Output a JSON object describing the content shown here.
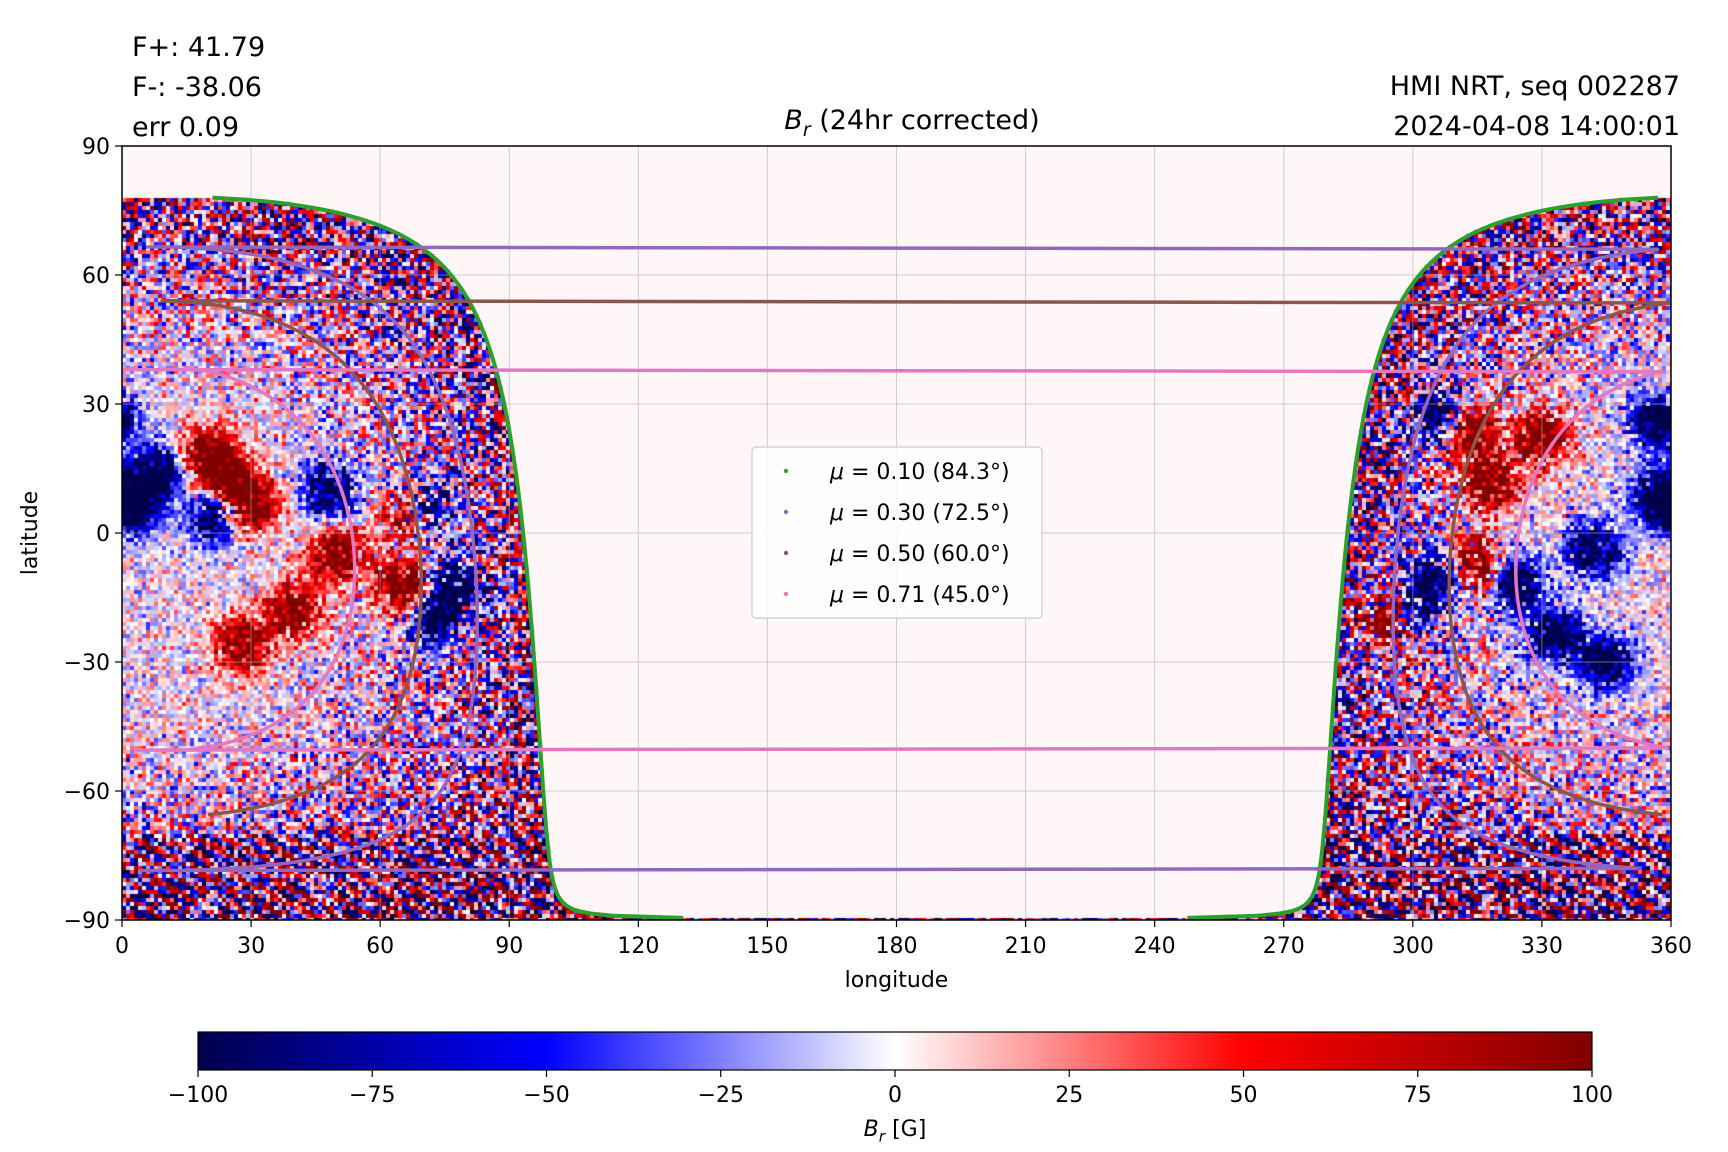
{
  "header": {
    "flux_pos": "F+: 41.79",
    "flux_neg": "F-: -38.06",
    "err": "err 0.09",
    "source": "HMI NRT, seq 002287",
    "timestamp": "2024-04-08 14:00:01"
  },
  "chart_data": {
    "type": "heatmap",
    "title": "B_r (24hr corrected)",
    "xlabel": "longitude",
    "ylabel": "latitude",
    "xlim": [
      0,
      360
    ],
    "ylim": [
      -90,
      90
    ],
    "x_ticks": [
      0,
      30,
      60,
      90,
      120,
      150,
      180,
      210,
      240,
      270,
      300,
      330,
      360
    ],
    "y_ticks": [
      90,
      60,
      30,
      0,
      -30,
      -60,
      -90
    ],
    "x_tick_labels": [
      "0",
      "30",
      "60",
      "90",
      "120",
      "150",
      "180",
      "210",
      "240",
      "270",
      "300",
      "330",
      "360"
    ],
    "y_tick_labels": [
      "90",
      "60",
      "30",
      "0",
      "−30",
      "−60",
      "−90"
    ],
    "grid": true,
    "colormap": "seismic",
    "visible_disk_center_longitude": 9,
    "visible_disk_center_latitude": -6,
    "series": [
      {
        "label": "μ = 0.10 (84.3°)",
        "mu": 0.1,
        "angle_deg": 84.3,
        "color": "#2ca02c"
      },
      {
        "label": "μ = 0.30 (72.5°)",
        "mu": 0.3,
        "angle_deg": 72.5,
        "color": "#9467bd"
      },
      {
        "label": "μ = 0.50 (60.0°)",
        "mu": 0.5,
        "angle_deg": 60.0,
        "color": "#8c564b"
      },
      {
        "label": "μ = 0.71 (45.0°)",
        "mu": 0.71,
        "angle_deg": 45.0,
        "color": "#e377c2"
      }
    ],
    "legend_position": "center",
    "active_regions": [
      {
        "lon": 8,
        "lat": 14,
        "sign": "negative"
      },
      {
        "lon": 3,
        "lat": 6,
        "sign": "negative"
      },
      {
        "lon": 20,
        "lat": 18,
        "sign": "positive"
      },
      {
        "lon": 25,
        "lat": 12,
        "sign": "positive"
      },
      {
        "lon": 30,
        "lat": 6,
        "sign": "positive"
      },
      {
        "lon": 22,
        "lat": 4,
        "sign": "negative"
      },
      {
        "lon": 70,
        "lat": 6,
        "sign": "negative"
      },
      {
        "lon": 67,
        "lat": 5,
        "sign": "positive"
      },
      {
        "lon": 50,
        "lat": -5,
        "sign": "positive"
      },
      {
        "lon": 40,
        "lat": -18,
        "sign": "positive"
      },
      {
        "lon": 28,
        "lat": -26,
        "sign": "positive"
      },
      {
        "lon": 65,
        "lat": -12,
        "sign": "positive"
      },
      {
        "lon": 78,
        "lat": -12,
        "sign": "negative"
      },
      {
        "lon": 73,
        "lat": -20,
        "sign": "negative"
      },
      {
        "lon": 48,
        "lat": 10,
        "sign": "negative"
      },
      {
        "lon": 307,
        "lat": 27,
        "sign": "negative"
      },
      {
        "lon": 313,
        "lat": 24,
        "sign": "positive"
      },
      {
        "lon": 318,
        "lat": 12,
        "sign": "positive"
      },
      {
        "lon": 314,
        "lat": -8,
        "sign": "positive"
      },
      {
        "lon": 306,
        "lat": -10,
        "sign": "negative"
      },
      {
        "lon": 300,
        "lat": -18,
        "sign": "negative"
      },
      {
        "lon": 295,
        "lat": -20,
        "sign": "positive"
      },
      {
        "lon": 324,
        "lat": -12,
        "sign": "negative"
      },
      {
        "lon": 357,
        "lat": 8,
        "sign": "negative"
      },
      {
        "lon": 333,
        "lat": -24,
        "sign": "negative"
      },
      {
        "lon": 345,
        "lat": -30,
        "sign": "negative"
      },
      {
        "lon": 342,
        "lat": -4,
        "sign": "negative"
      },
      {
        "lon": 330,
        "lat": 22,
        "sign": "positive"
      },
      {
        "lon": 357,
        "lat": 26,
        "sign": "negative"
      }
    ]
  },
  "colorbar": {
    "label": "B_r [G]",
    "min": -100,
    "max": 100,
    "ticks": [
      -100,
      -75,
      -50,
      -25,
      0,
      25,
      50,
      75,
      100
    ],
    "tick_labels": [
      "−100",
      "−75",
      "−50",
      "−25",
      "0",
      "25",
      "50",
      "75",
      "100"
    ]
  }
}
